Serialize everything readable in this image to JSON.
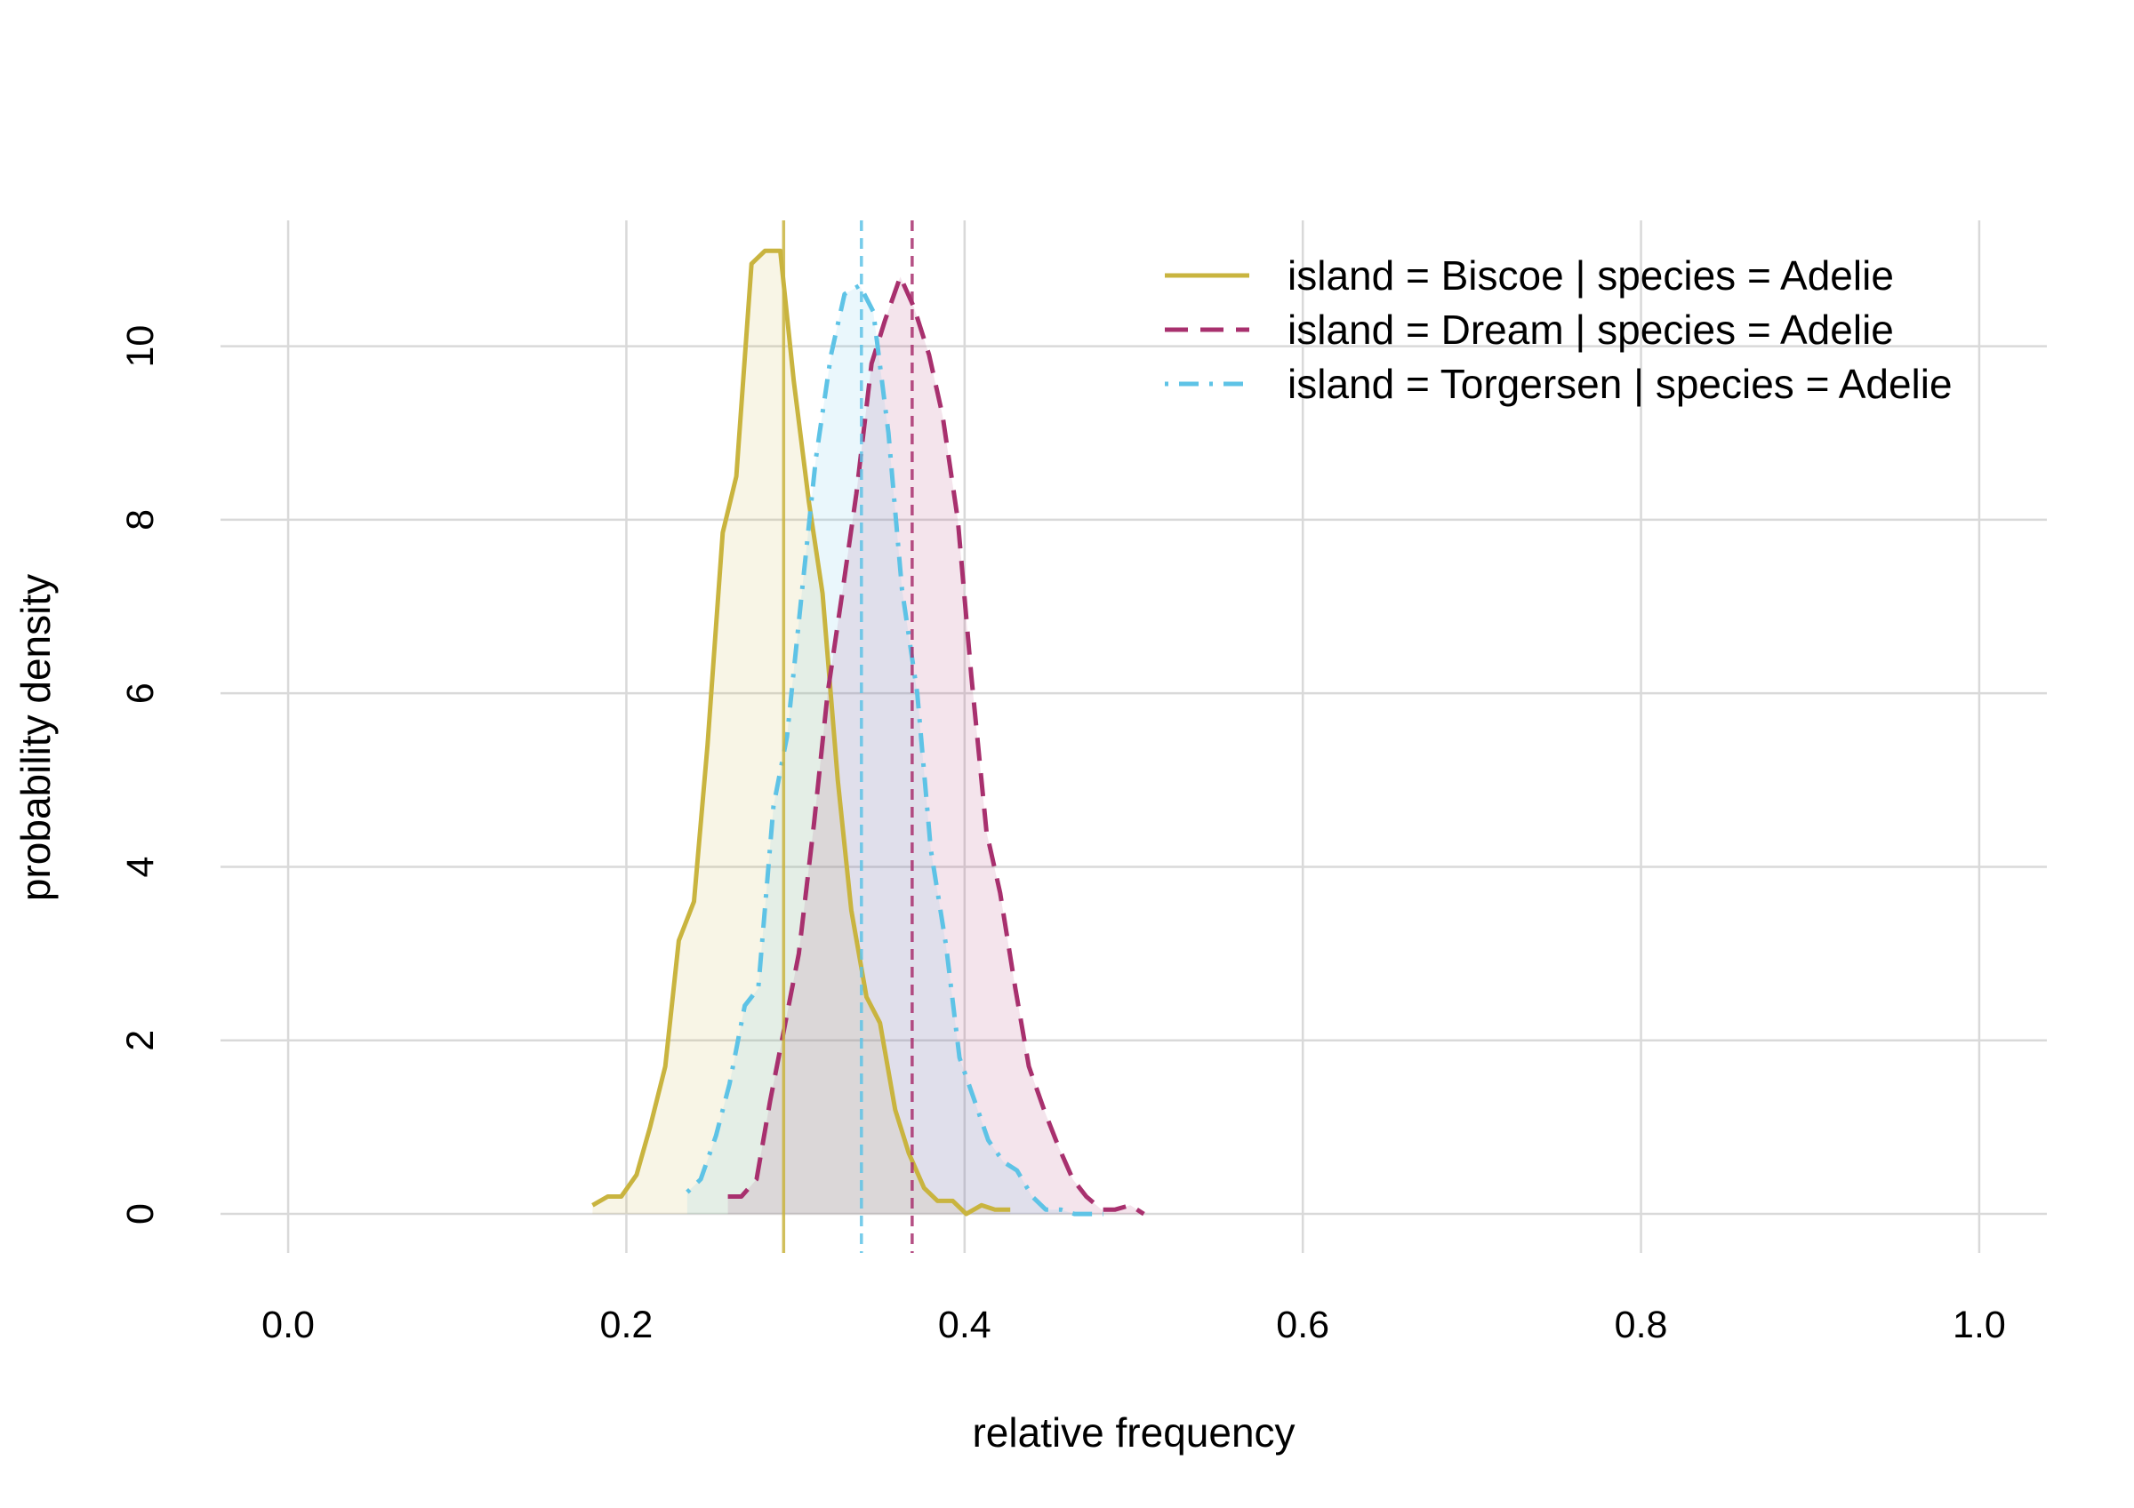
{
  "chart_data": {
    "type": "line",
    "title": "",
    "xlabel": "relative frequency",
    "ylabel": "probability density",
    "xlim": [
      -0.04,
      1.04
    ],
    "ylim": [
      -0.45,
      11.45
    ],
    "x_ticks": [
      0.0,
      0.2,
      0.4,
      0.6,
      0.8,
      1.0
    ],
    "x_tick_labels": [
      "0.0",
      "0.2",
      "0.4",
      "0.6",
      "0.8",
      "1.0"
    ],
    "y_ticks": [
      0,
      2,
      4,
      6,
      8,
      10
    ],
    "y_tick_labels": [
      "0",
      "2",
      "4",
      "6",
      "8",
      "10"
    ],
    "grid": true,
    "legend_position": "top-right",
    "series": [
      {
        "name": "island = Biscoe | species = Adelie",
        "color": "#c9b43f",
        "dash": "solid",
        "mean": 0.293,
        "x": [
          0.18,
          0.189,
          0.197,
          0.206,
          0.214,
          0.223,
          0.231,
          0.24,
          0.248,
          0.257,
          0.265,
          0.274,
          0.282,
          0.291,
          0.299,
          0.308,
          0.316,
          0.325,
          0.333,
          0.342,
          0.35,
          0.359,
          0.367,
          0.376,
          0.384,
          0.393,
          0.401,
          0.41,
          0.418,
          0.427
        ],
        "y": [
          0.1,
          0.2,
          0.2,
          0.45,
          1.0,
          1.7,
          3.15,
          3.6,
          5.4,
          7.85,
          8.5,
          10.95,
          11.1,
          11.1,
          9.6,
          8.2,
          7.15,
          5.0,
          3.5,
          2.5,
          2.2,
          1.2,
          0.7,
          0.3,
          0.15,
          0.15,
          0.0,
          0.1,
          0.05,
          0.05
        ]
      },
      {
        "name": "island = Dream | species = Adelie",
        "color": "#a8306e",
        "dash": "dashed",
        "mean": 0.369,
        "x": [
          0.26,
          0.268,
          0.277,
          0.285,
          0.294,
          0.302,
          0.311,
          0.319,
          0.328,
          0.336,
          0.345,
          0.353,
          0.362,
          0.37,
          0.379,
          0.387,
          0.396,
          0.404,
          0.413,
          0.421,
          0.43,
          0.438,
          0.447,
          0.455,
          0.464,
          0.472,
          0.481,
          0.489,
          0.498,
          0.506
        ],
        "y": [
          0.2,
          0.2,
          0.4,
          1.3,
          2.2,
          3.0,
          4.5,
          6.0,
          7.2,
          8.3,
          9.8,
          10.3,
          10.8,
          10.45,
          9.9,
          9.2,
          8.0,
          6.2,
          4.4,
          3.7,
          2.6,
          1.7,
          1.2,
          0.8,
          0.4,
          0.2,
          0.05,
          0.05,
          0.1,
          0.0
        ]
      },
      {
        "name": "island = Torgersen | species = Adelie",
        "color": "#5ec3e6",
        "dash": "dotdash",
        "mean": 0.339,
        "x": [
          0.236,
          0.244,
          0.253,
          0.261,
          0.27,
          0.278,
          0.287,
          0.295,
          0.304,
          0.312,
          0.321,
          0.329,
          0.338,
          0.346,
          0.355,
          0.363,
          0.372,
          0.38,
          0.389,
          0.397,
          0.406,
          0.414,
          0.423,
          0.431,
          0.44,
          0.448,
          0.457,
          0.465,
          0.474,
          0.482
        ],
        "y": [
          0.25,
          0.4,
          0.9,
          1.5,
          2.4,
          2.6,
          4.7,
          5.5,
          7.2,
          8.7,
          9.9,
          10.6,
          10.7,
          10.4,
          9.0,
          7.2,
          6.0,
          4.2,
          3.1,
          1.8,
          1.3,
          0.85,
          0.6,
          0.5,
          0.2,
          0.05,
          0.05,
          0.0,
          0.0,
          0.0
        ]
      }
    ]
  }
}
